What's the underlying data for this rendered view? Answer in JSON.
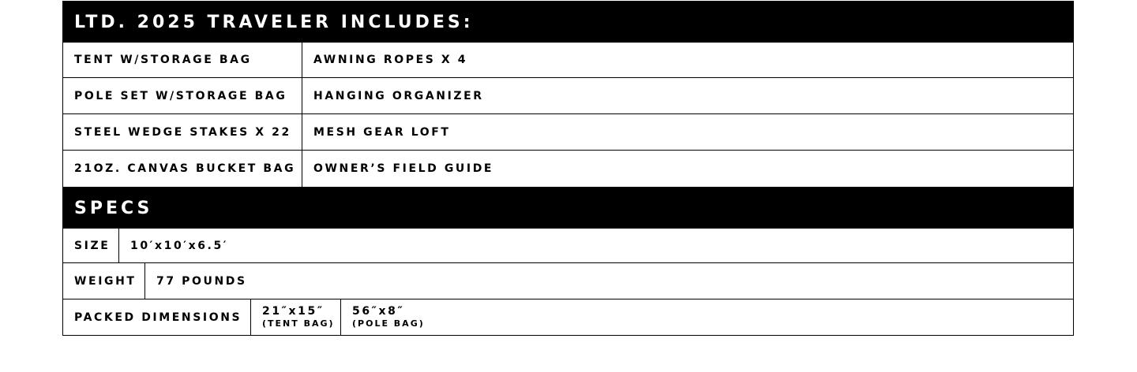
{
  "includes": {
    "title": "LTD. 2025 TRAVELER INCLUDES:",
    "rows": [
      [
        "TENT W/STORAGE BAG",
        "AWNING ROPES X 4"
      ],
      [
        "POLE SET W/STORAGE BAG",
        "HANGING ORGANIZER"
      ],
      [
        "STEEL WEDGE STAKES X 22",
        "MESH GEAR LOFT"
      ],
      [
        "21OZ. CANVAS BUCKET BAG",
        "OWNER’S FIELD GUIDE"
      ]
    ]
  },
  "specs": {
    "title": "SPECS",
    "size": {
      "label": "SIZE",
      "value": "10′x10′x6.5′"
    },
    "weight": {
      "label": "WEIGHT",
      "value": "77 POUNDS"
    },
    "packed": {
      "label": "PACKED DIMENSIONS",
      "tent": {
        "value": "21″x15″",
        "note": "(TENT BAG)"
      },
      "pole": {
        "value": "56″x8″",
        "note": "(POLE BAG)"
      }
    }
  }
}
